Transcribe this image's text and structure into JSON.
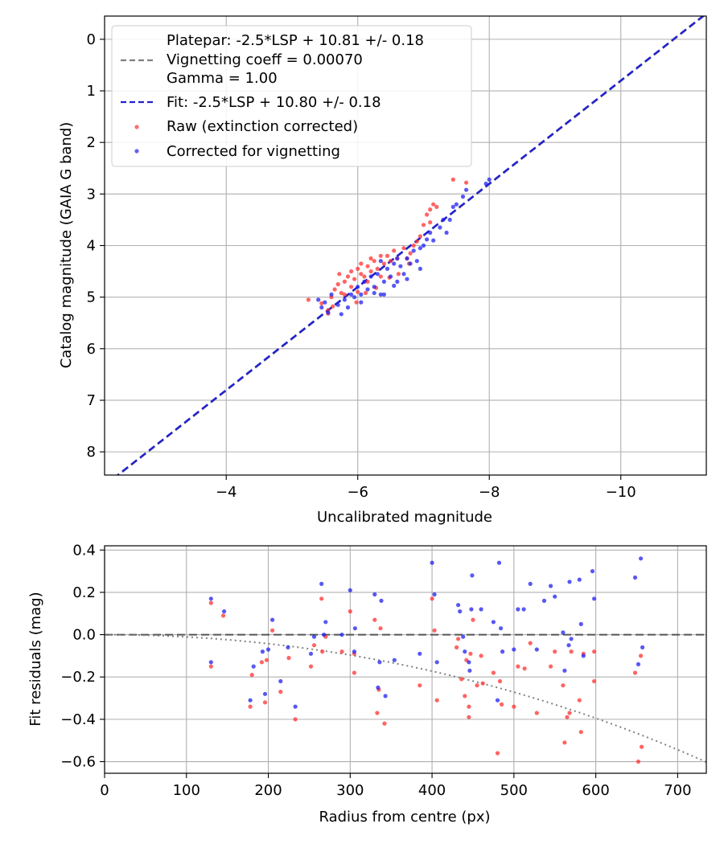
{
  "chart_data": [
    {
      "type": "scatter",
      "xlabel": "Uncalibrated magnitude",
      "ylabel": "Catalog magnitude (GAIA G band)",
      "xlim": [
        -2.15,
        -11.3
      ],
      "ylim": [
        8.45,
        -0.45
      ],
      "y_inverted": true,
      "x_inverted": true,
      "grid": true,
      "xticks": [
        -4,
        -6,
        -8,
        -10
      ],
      "xtick_labels": [
        "−4",
        "−6",
        "−8",
        "−10"
      ],
      "yticks": [
        0,
        1,
        2,
        3,
        4,
        5,
        6,
        7,
        8
      ],
      "ytick_labels": [
        "0",
        "1",
        "2",
        "3",
        "4",
        "5",
        "6",
        "7",
        "8"
      ],
      "legend_position": "top-left",
      "legend": [
        {
          "label": "Platepar: -2.5*LSP + 10.81 +/- 0.18",
          "kind": "none"
        },
        {
          "label": "Vignetting coeff = 0.00070",
          "kind": "dash-gray"
        },
        {
          "label": "Gamma = 1.00",
          "kind": "none"
        },
        {
          "label": "Fit: -2.5*LSP + 10.80 +/- 0.18",
          "kind": "dash-blue"
        },
        {
          "label": "Raw (extinction corrected)",
          "kind": "dot-red"
        },
        {
          "label": "Corrected for vignetting",
          "kind": "dot-blue"
        }
      ],
      "lines": [
        {
          "name": "Platepar",
          "slope": 1.0,
          "intercept": 10.81,
          "color": "#808080"
        },
        {
          "name": "Fit",
          "slope": 1.0,
          "intercept": 10.8,
          "color": "#2020d0"
        }
      ],
      "series": [
        {
          "name": "Raw (extinction corrected)",
          "color": "#ff3030",
          "points": [
            [
              -5.25,
              5.05
            ],
            [
              -5.45,
              5.12
            ],
            [
              -5.55,
              5.25
            ],
            [
              -5.6,
              5.0
            ],
            [
              -5.65,
              4.85
            ],
            [
              -5.7,
              4.75
            ],
            [
              -5.72,
              4.55
            ],
            [
              -5.75,
              4.92
            ],
            [
              -5.8,
              4.7
            ],
            [
              -5.85,
              4.6
            ],
            [
              -5.9,
              4.5
            ],
            [
              -5.9,
              4.8
            ],
            [
              -5.95,
              4.65
            ],
            [
              -6.0,
              4.45
            ],
            [
              -6.0,
              4.9
            ],
            [
              -6.05,
              4.55
            ],
            [
              -6.05,
              4.35
            ],
            [
              -6.1,
              4.6
            ],
            [
              -6.15,
              4.4
            ],
            [
              -6.15,
              4.7
            ],
            [
              -6.2,
              4.5
            ],
            [
              -6.2,
              4.25
            ],
            [
              -6.25,
              4.3
            ],
            [
              -6.3,
              4.45
            ],
            [
              -6.35,
              4.2
            ],
            [
              -6.35,
              4.6
            ],
            [
              -6.4,
              4.35
            ],
            [
              -6.45,
              4.2
            ],
            [
              -6.5,
              4.3
            ],
            [
              -6.55,
              4.1
            ],
            [
              -6.6,
              4.25
            ],
            [
              -6.7,
              4.05
            ],
            [
              -6.75,
              4.25
            ],
            [
              -6.8,
              4.15
            ],
            [
              -6.85,
              4.0
            ],
            [
              -6.9,
              3.92
            ],
            [
              -6.95,
              3.82
            ],
            [
              -7.0,
              3.6
            ],
            [
              -7.05,
              3.4
            ],
            [
              -7.1,
              3.3
            ],
            [
              -7.1,
              3.55
            ],
            [
              -7.15,
              3.2
            ],
            [
              -7.2,
              3.25
            ],
            [
              -7.45,
              2.72
            ],
            [
              -7.65,
              2.78
            ],
            [
              -5.55,
              5.32
            ],
            [
              -5.62,
              5.18
            ],
            [
              -5.8,
              4.95
            ],
            [
              -5.98,
              5.1
            ],
            [
              -6.12,
              4.92
            ],
            [
              -6.28,
              4.82
            ],
            [
              -6.48,
              4.62
            ],
            [
              -6.62,
              4.55
            ],
            [
              -6.78,
              4.35
            ]
          ]
        },
        {
          "name": "Corrected for vignetting",
          "color": "#2020f0",
          "points": [
            [
              -5.4,
              5.05
            ],
            [
              -5.45,
              5.2
            ],
            [
              -5.5,
              5.1
            ],
            [
              -5.55,
              5.3
            ],
            [
              -5.6,
              4.95
            ],
            [
              -5.7,
              5.15
            ],
            [
              -5.75,
              5.33
            ],
            [
              -5.8,
              5.05
            ],
            [
              -5.85,
              5.2
            ],
            [
              -5.9,
              4.95
            ],
            [
              -5.95,
              5.0
            ],
            [
              -6.0,
              4.8
            ],
            [
              -6.05,
              5.1
            ],
            [
              -6.1,
              4.7
            ],
            [
              -6.15,
              4.85
            ],
            [
              -6.2,
              4.6
            ],
            [
              -6.25,
              4.8
            ],
            [
              -6.3,
              4.55
            ],
            [
              -6.35,
              4.95
            ],
            [
              -6.35,
              4.3
            ],
            [
              -6.4,
              4.7
            ],
            [
              -6.45,
              4.45
            ],
            [
              -6.5,
              4.6
            ],
            [
              -6.55,
              4.35
            ],
            [
              -6.6,
              4.7
            ],
            [
              -6.65,
              4.4
            ],
            [
              -6.7,
              4.55
            ],
            [
              -6.75,
              4.25
            ],
            [
              -6.8,
              4.35
            ],
            [
              -6.85,
              4.1
            ],
            [
              -6.9,
              4.3
            ],
            [
              -6.95,
              4.05
            ],
            [
              -7.0,
              4.0
            ],
            [
              -7.05,
              3.88
            ],
            [
              -7.1,
              3.75
            ],
            [
              -7.15,
              3.9
            ],
            [
              -7.25,
              3.65
            ],
            [
              -7.3,
              3.5
            ],
            [
              -7.35,
              3.75
            ],
            [
              -7.4,
              3.5
            ],
            [
              -7.45,
              3.25
            ],
            [
              -7.5,
              3.2
            ],
            [
              -7.6,
              3.05
            ],
            [
              -7.65,
              2.92
            ],
            [
              -7.95,
              2.8
            ],
            [
              -8.0,
              2.72
            ],
            [
              -6.05,
              4.95
            ],
            [
              -6.25,
              4.92
            ],
            [
              -6.4,
              4.95
            ],
            [
              -6.55,
              4.78
            ],
            [
              -6.75,
              4.65
            ],
            [
              -6.95,
              4.45
            ],
            [
              -6.6,
              4.25
            ]
          ]
        }
      ]
    },
    {
      "type": "scatter",
      "xlabel": "Radius from centre (px)",
      "ylabel": "Fit residuals (mag)",
      "xlim": [
        0,
        735
      ],
      "ylim": [
        -0.655,
        0.42
      ],
      "grid": true,
      "xticks": [
        0,
        100,
        200,
        300,
        400,
        500,
        600,
        700
      ],
      "xtick_labels": [
        "0",
        "100",
        "200",
        "300",
        "400",
        "500",
        "600",
        "700"
      ],
      "yticks": [
        -0.6,
        -0.4,
        -0.2,
        0.0,
        0.2,
        0.4
      ],
      "ytick_labels": [
        "−0.6",
        "−0.4",
        "−0.2",
        "0.0",
        "0.2",
        "0.4"
      ],
      "zero_line": {
        "y": 0.0,
        "style": "dashed",
        "color": "#555555"
      },
      "vignetting_curve": {
        "coeff": 0.0007,
        "gamma": 1.0,
        "style": "dotted",
        "color": "#808080"
      },
      "series": [
        {
          "name": "Raw (extinction corrected)",
          "color": "#ff3030",
          "points": [
            [
              130,
              0.15
            ],
            [
              130,
              -0.15
            ],
            [
              145,
              0.09
            ],
            [
              178,
              -0.34
            ],
            [
              180,
              -0.19
            ],
            [
              192,
              -0.13
            ],
            [
              196,
              -0.32
            ],
            [
              198,
              -0.12
            ],
            [
              205,
              0.02
            ],
            [
              215,
              -0.27
            ],
            [
              225,
              -0.11
            ],
            [
              233,
              -0.4
            ],
            [
              252,
              -0.15
            ],
            [
              256,
              -0.05
            ],
            [
              265,
              0.17
            ],
            [
              266,
              -0.08
            ],
            [
              270,
              -0.01
            ],
            [
              290,
              -0.08
            ],
            [
              300,
              0.11
            ],
            [
              305,
              -0.18
            ],
            [
              305,
              -0.09
            ],
            [
              330,
              0.07
            ],
            [
              333,
              -0.37
            ],
            [
              335,
              -0.26
            ],
            [
              337,
              0.03
            ],
            [
              342,
              -0.42
            ],
            [
              385,
              -0.24
            ],
            [
              400,
              0.17
            ],
            [
              403,
              0.02
            ],
            [
              406,
              -0.31
            ],
            [
              430,
              -0.06
            ],
            [
              432,
              -0.02
            ],
            [
              436,
              -0.21
            ],
            [
              440,
              -0.29
            ],
            [
              442,
              -0.12
            ],
            [
              445,
              -0.34
            ],
            [
              445,
              -0.39
            ],
            [
              447,
              -0.09
            ],
            [
              450,
              0.07
            ],
            [
              455,
              -0.24
            ],
            [
              460,
              -0.1
            ],
            [
              462,
              -0.23
            ],
            [
              475,
              -0.18
            ],
            [
              480,
              -0.56
            ],
            [
              483,
              -0.22
            ],
            [
              485,
              -0.33
            ],
            [
              500,
              -0.34
            ],
            [
              505,
              -0.15
            ],
            [
              513,
              -0.16
            ],
            [
              520,
              -0.04
            ],
            [
              528,
              -0.37
            ],
            [
              545,
              -0.15
            ],
            [
              550,
              -0.08
            ],
            [
              560,
              -0.24
            ],
            [
              562,
              -0.51
            ],
            [
              565,
              -0.39
            ],
            [
              568,
              -0.37
            ],
            [
              570,
              -0.08
            ],
            [
              580,
              -0.31
            ],
            [
              582,
              -0.46
            ],
            [
              585,
              -0.09
            ],
            [
              598,
              -0.22
            ],
            [
              598,
              -0.08
            ],
            [
              648,
              -0.18
            ],
            [
              652,
              -0.6
            ],
            [
              655,
              -0.1
            ],
            [
              656,
              -0.53
            ]
          ]
        },
        {
          "name": "Corrected for vignetting",
          "color": "#2020f0",
          "points": [
            [
              130,
              0.17
            ],
            [
              130,
              -0.13
            ],
            [
              146,
              0.11
            ],
            [
              178,
              -0.31
            ],
            [
              182,
              -0.15
            ],
            [
              193,
              -0.08
            ],
            [
              196,
              -0.28
            ],
            [
              200,
              -0.07
            ],
            [
              205,
              0.07
            ],
            [
              215,
              -0.22
            ],
            [
              224,
              -0.06
            ],
            [
              233,
              -0.34
            ],
            [
              252,
              -0.09
            ],
            [
              256,
              -0.01
            ],
            [
              265,
              0.24
            ],
            [
              268,
              0.0
            ],
            [
              270,
              0.06
            ],
            [
              290,
              0.0
            ],
            [
              300,
              0.21
            ],
            [
              305,
              -0.08
            ],
            [
              306,
              0.03
            ],
            [
              330,
              0.19
            ],
            [
              334,
              -0.25
            ],
            [
              336,
              -0.13
            ],
            [
              338,
              0.16
            ],
            [
              343,
              -0.29
            ],
            [
              354,
              -0.12
            ],
            [
              385,
              -0.09
            ],
            [
              400,
              0.34
            ],
            [
              403,
              0.19
            ],
            [
              406,
              -0.13
            ],
            [
              432,
              0.14
            ],
            [
              434,
              0.11
            ],
            [
              438,
              -0.01
            ],
            [
              440,
              -0.08
            ],
            [
              445,
              -0.13
            ],
            [
              446,
              -0.17
            ],
            [
              448,
              0.12
            ],
            [
              449,
              0.28
            ],
            [
              460,
              0.12
            ],
            [
              475,
              0.06
            ],
            [
              480,
              -0.31
            ],
            [
              482,
              0.34
            ],
            [
              484,
              0.03
            ],
            [
              486,
              -0.08
            ],
            [
              500,
              -0.07
            ],
            [
              505,
              0.12
            ],
            [
              512,
              0.12
            ],
            [
              520,
              0.24
            ],
            [
              528,
              -0.07
            ],
            [
              537,
              0.16
            ],
            [
              545,
              0.23
            ],
            [
              550,
              0.18
            ],
            [
              560,
              0.01
            ],
            [
              562,
              -0.17
            ],
            [
              567,
              -0.05
            ],
            [
              568,
              0.25
            ],
            [
              570,
              -0.02
            ],
            [
              580,
              0.26
            ],
            [
              582,
              0.05
            ],
            [
              585,
              -0.1
            ],
            [
              596,
              0.3
            ],
            [
              598,
              0.17
            ],
            [
              648,
              0.27
            ],
            [
              652,
              -0.14
            ],
            [
              655,
              0.36
            ],
            [
              657,
              -0.06
            ]
          ]
        }
      ]
    }
  ]
}
